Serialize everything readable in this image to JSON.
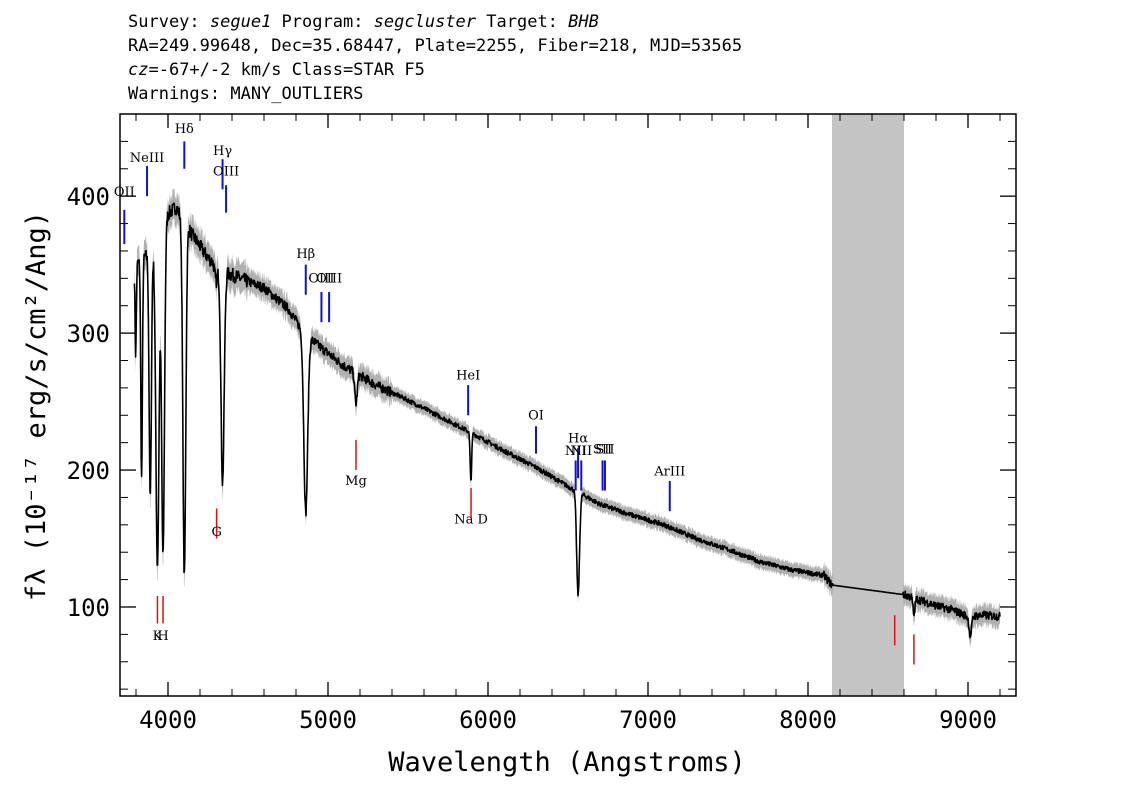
{
  "header": {
    "survey_label": "Survey: ",
    "survey": "segue1",
    "program_label": " Program: ",
    "program": "segcluster",
    "target_label": " Target: ",
    "target": "BHB",
    "line2": "RA=249.99648, Dec=35.68447, Plate=2255, Fiber=218, MJD=53565",
    "cz_label": "cz",
    "line3_rest": "=-67+/-2 km/s Class=STAR F5",
    "line4": "Warnings: MANY_OUTLIERS"
  },
  "chart_data": {
    "type": "line",
    "xlabel": "Wavelength (Angstroms)",
    "ylabel": "fλ (10⁻¹⁷ erg/s/cm²/Ang)",
    "xlim": [
      3700,
      9300
    ],
    "ylim": [
      35,
      460
    ],
    "x_ticks": [
      4000,
      5000,
      6000,
      7000,
      8000,
      9000
    ],
    "x_tick_labels": [
      "4000",
      "5000",
      "6000",
      "7000",
      "8000",
      "9000"
    ],
    "y_ticks": [
      100,
      200,
      300,
      400
    ],
    "y_tick_labels": [
      "100",
      "200",
      "300",
      "400"
    ],
    "masked_region": [
      8150,
      8600
    ],
    "spectrum_color": "#000000",
    "error_color": "#b0b0b0",
    "mask_color": "#c4c4c4",
    "continuum": [
      [
        3800,
        350
      ],
      [
        3900,
        360
      ],
      [
        3980,
        385
      ],
      [
        4050,
        392
      ],
      [
        4150,
        372
      ],
      [
        4250,
        355
      ],
      [
        4350,
        345
      ],
      [
        4450,
        340
      ],
      [
        4600,
        333
      ],
      [
        4750,
        318
      ],
      [
        4850,
        300
      ],
      [
        4950,
        290
      ],
      [
        5100,
        276
      ],
      [
        5300,
        262
      ],
      [
        5500,
        251
      ],
      [
        5700,
        239
      ],
      [
        5900,
        227
      ],
      [
        6100,
        214
      ],
      [
        6300,
        202
      ],
      [
        6500,
        188
      ],
      [
        6700,
        175
      ],
      [
        6900,
        167
      ],
      [
        7100,
        160
      ],
      [
        7300,
        150
      ],
      [
        7500,
        142
      ],
      [
        7700,
        133
      ],
      [
        7900,
        127
      ],
      [
        8100,
        123
      ],
      [
        8150,
        116
      ],
      [
        8600,
        109
      ],
      [
        8700,
        105
      ],
      [
        8800,
        101
      ],
      [
        8900,
        98
      ],
      [
        9000,
        93
      ],
      [
        9100,
        94
      ],
      [
        9200,
        93
      ]
    ],
    "absorption_lines": [
      {
        "center": 3798,
        "depth": 65,
        "width": 4
      },
      {
        "center": 3835,
        "depth": 160,
        "width": 5
      },
      {
        "center": 3889,
        "depth": 180,
        "width": 7
      },
      {
        "center": 3934,
        "depth": 240,
        "width": 10
      },
      {
        "center": 3969,
        "depth": 245,
        "width": 9
      },
      {
        "center": 4102,
        "depth": 260,
        "width": 9
      },
      {
        "center": 4300,
        "depth": 12,
        "width": 8
      },
      {
        "center": 4341,
        "depth": 155,
        "width": 10
      },
      {
        "center": 4861,
        "depth": 130,
        "width": 12
      },
      {
        "center": 5175,
        "depth": 22,
        "width": 8
      },
      {
        "center": 5893,
        "depth": 35,
        "width": 5
      },
      {
        "center": 6563,
        "depth": 75,
        "width": 9
      },
      {
        "center": 8662,
        "depth": 12,
        "width": 6
      },
      {
        "center": 9015,
        "depth": 14,
        "width": 8
      }
    ],
    "emission_lines": [
      {
        "label": "OII",
        "wavelength": 3727,
        "label_y": 400,
        "marker": [
          390,
          365
        ]
      },
      {
        "label": "NeIII",
        "wavelength": 3869,
        "label_y": 425,
        "marker": [
          422,
          400
        ]
      },
      {
        "label": "Hδ",
        "wavelength": 4102,
        "label_y": 446,
        "marker": [
          440,
          420
        ]
      },
      {
        "label": "Hγ",
        "wavelength": 4341,
        "label_y": 430,
        "marker": [
          427,
          405
        ]
      },
      {
        "label": "OIII",
        "wavelength": 4363,
        "label_y": 415,
        "marker": [
          408,
          388
        ]
      },
      {
        "label": "Hβ",
        "wavelength": 4861,
        "label_y": 355,
        "marker": [
          350,
          328
        ]
      },
      {
        "label": "OIII",
        "wavelength": 4959,
        "label_y": 337,
        "marker": [
          330,
          308
        ]
      },
      {
        "label": "OIII",
        "wavelength": 5007,
        "label_y": 337,
        "marker": [
          330,
          308
        ]
      },
      {
        "label": "HeI",
        "wavelength": 5876,
        "label_y": 266,
        "marker": [
          262,
          240
        ]
      },
      {
        "label": "OI",
        "wavelength": 6300,
        "label_y": 237,
        "marker": [
          232,
          212
        ]
      },
      {
        "label": "NII",
        "wavelength": 6548,
        "label_y": 211,
        "marker": [
          207,
          185
        ]
      },
      {
        "label": "Hα",
        "wavelength": 6563,
        "label_y": 220,
        "marker": [
          216,
          194
        ]
      },
      {
        "label": "NII",
        "wavelength": 6583,
        "label_y": 211,
        "marker": [
          207,
          185
        ]
      },
      {
        "label": "SII",
        "wavelength": 6716,
        "label_y": 212,
        "marker": [
          207,
          185
        ]
      },
      {
        "label": "SII",
        "wavelength": 6731,
        "label_y": 212,
        "marker": [
          207,
          185
        ]
      },
      {
        "label": "ArIII",
        "wavelength": 7136,
        "label_y": 196,
        "marker": [
          192,
          170
        ]
      }
    ],
    "absorption_markers": [
      {
        "label": "K",
        "wavelength": 3934,
        "label_y": 76,
        "marker": [
          88,
          108
        ]
      },
      {
        "label": "H",
        "wavelength": 3969,
        "label_y": 76,
        "marker": [
          88,
          108
        ]
      },
      {
        "label": "G",
        "wavelength": 4304,
        "label_y": 152,
        "marker": [
          150,
          172
        ]
      },
      {
        "label": "Mg",
        "wavelength": 5175,
        "label_y": 189,
        "marker": [
          200,
          222
        ]
      },
      {
        "label": "Na  D",
        "wavelength": 5894,
        "label_y": 161,
        "marker": [
          165,
          187
        ]
      },
      {
        "label": "",
        "wavelength": 8542,
        "label_y": 0,
        "marker": [
          72,
          94
        ]
      },
      {
        "label": "",
        "wavelength": 8662,
        "label_y": 0,
        "marker": [
          58,
          80
        ]
      }
    ]
  }
}
